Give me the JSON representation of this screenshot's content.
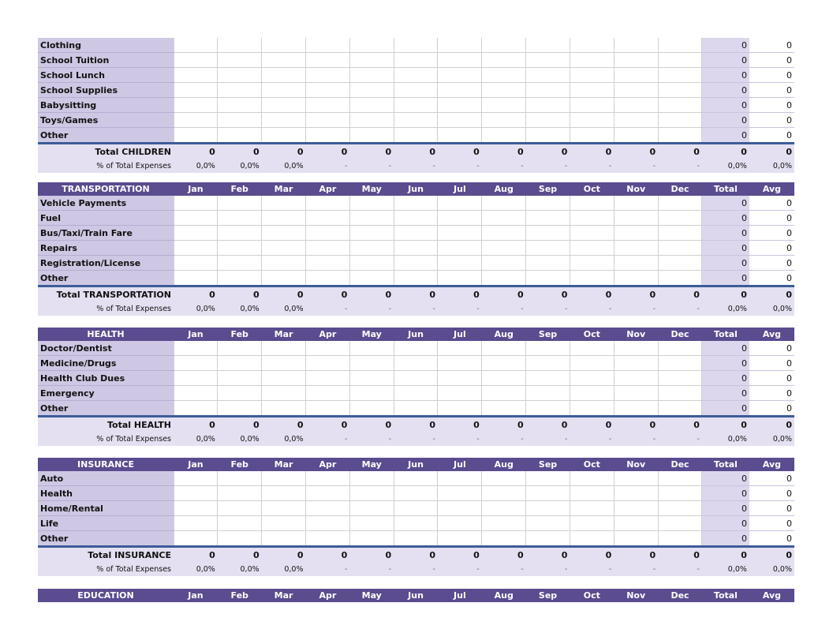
{
  "months": [
    "Jan",
    "Feb",
    "Mar",
    "Apr",
    "May",
    "Jun",
    "Jul",
    "Aug",
    "Sep",
    "Oct",
    "Nov",
    "Dec"
  ],
  "total_col_label": "Total",
  "avg_col_label": "Avg",
  "pct_label": "% of Total Expenses",
  "zero": "0",
  "pct_value": "0,0%",
  "dash": "-",
  "sections": [
    {
      "key": "children",
      "header": "",
      "show_header": false,
      "items": [
        "Clothing",
        "School Tuition",
        "School Lunch",
        "School Supplies",
        "Babysitting",
        "Toys/Games",
        "Other"
      ],
      "total_label": "Total CHILDREN"
    },
    {
      "key": "transportation",
      "header": "TRANSPORTATION",
      "show_header": true,
      "items": [
        "Vehicle Payments",
        "Fuel",
        "Bus/Taxi/Train Fare",
        "Repairs",
        "Registration/License",
        "Other"
      ],
      "total_label": "Total TRANSPORTATION"
    },
    {
      "key": "health",
      "header": "HEALTH",
      "show_header": true,
      "items": [
        "Doctor/Dentist",
        "Medicine/Drugs",
        "Health Club Dues",
        "Emergency",
        "Other"
      ],
      "total_label": "Total HEALTH"
    },
    {
      "key": "insurance",
      "header": "INSURANCE",
      "show_header": true,
      "items": [
        "Auto",
        "Health",
        "Home/Rental",
        "Life",
        "Other"
      ],
      "total_label": "Total INSURANCE"
    },
    {
      "key": "education",
      "header": "EDUCATION",
      "show_header": true,
      "items": [],
      "total_label": ""
    }
  ],
  "colors": {
    "header_bg": "#5b4b8f",
    "label_bg": "#cfc8e4",
    "total_bg": "#e4e0f1",
    "rule": "#3d5c99"
  }
}
